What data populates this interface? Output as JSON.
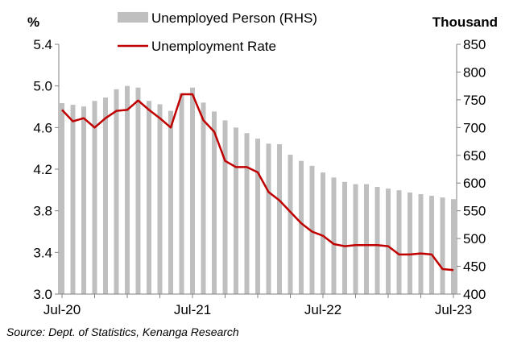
{
  "chart_data": {
    "type": "bar+line",
    "left_axis_unit": "%",
    "right_axis_unit": "Thousand",
    "left_ylim": [
      3.0,
      5.4
    ],
    "left_ticks": [
      "3.0",
      "3.4",
      "3.8",
      "4.2",
      "4.6",
      "5.0",
      "5.4"
    ],
    "right_ylim": [
      400,
      850
    ],
    "right_ticks": [
      "400",
      "450",
      "500",
      "550",
      "600",
      "650",
      "700",
      "750",
      "800",
      "850"
    ],
    "x_tick_labels": [
      "Jul-20",
      "Jul-21",
      "Jul-22",
      "Jul-23"
    ],
    "x": [
      "Jul-20",
      "Aug-20",
      "Sep-20",
      "Oct-20",
      "Nov-20",
      "Dec-20",
      "Jan-21",
      "Feb-21",
      "Mar-21",
      "Apr-21",
      "May-21",
      "Jun-21",
      "Jul-21",
      "Aug-21",
      "Sep-21",
      "Oct-21",
      "Nov-21",
      "Dec-21",
      "Jan-22",
      "Feb-22",
      "Mar-22",
      "Apr-22",
      "May-22",
      "Jun-22",
      "Jul-22",
      "Aug-22",
      "Sep-22",
      "Oct-22",
      "Nov-22",
      "Dec-22",
      "Jan-23",
      "Feb-23",
      "Mar-23",
      "Apr-23",
      "May-23",
      "Jun-23",
      "Jul-23"
    ],
    "series": [
      {
        "name": "Unemployed Person (RHS)",
        "type": "bar",
        "axis": "right",
        "color": "#bfbfbf",
        "values": [
          744,
          741,
          738,
          748,
          754,
          769,
          775,
          772,
          748,
          742,
          730,
          762,
          772,
          745,
          729,
          713,
          700,
          690,
          680,
          671,
          670,
          651,
          640,
          631,
          619,
          610,
          602,
          598,
          598,
          593,
          590,
          587,
          583,
          580,
          577,
          574,
          571
        ]
      },
      {
        "name": "Unemployment Rate",
        "type": "line",
        "axis": "left",
        "color": "#c00000",
        "values": [
          4.77,
          4.66,
          4.69,
          4.6,
          4.69,
          4.76,
          4.77,
          4.86,
          4.77,
          4.69,
          4.6,
          4.92,
          4.92,
          4.67,
          4.56,
          4.28,
          4.22,
          4.22,
          4.17,
          3.98,
          3.9,
          3.79,
          3.68,
          3.6,
          3.56,
          3.48,
          3.46,
          3.47,
          3.47,
          3.47,
          3.46,
          3.38,
          3.38,
          3.39,
          3.38,
          3.24,
          3.23
        ]
      }
    ]
  },
  "source_note": "Source:  Dept. of Statistics, Kenanga Research"
}
